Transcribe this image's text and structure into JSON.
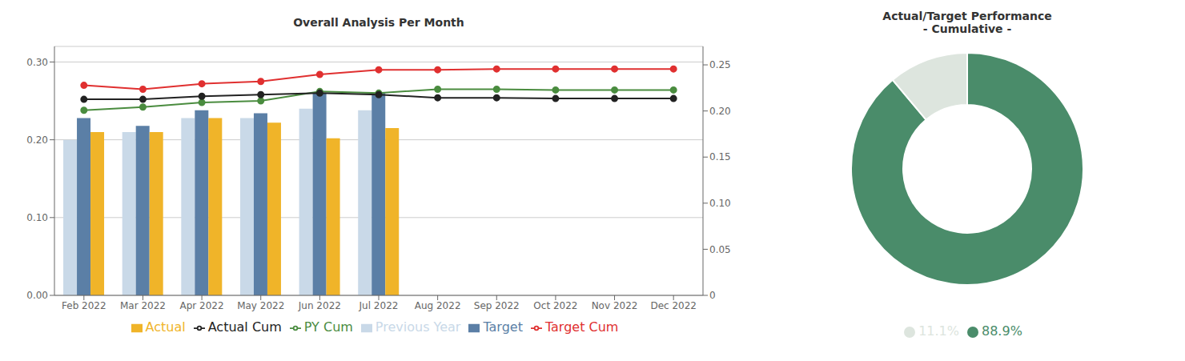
{
  "chart_data": [
    {
      "type": "bar",
      "title": "Overall Analysis Per Month",
      "categories": [
        "Feb 2022",
        "Mar 2022",
        "Apr 2022",
        "May 2022",
        "Jun 2022",
        "Jul 2022",
        "Aug 2022",
        "Sep 2022",
        "Oct 2022",
        "Nov 2022",
        "Dec 2022"
      ],
      "series": [
        {
          "name": "Previous Year",
          "type": "bar",
          "color": "#c9d9e8",
          "values": [
            0.2,
            0.21,
            0.228,
            0.228,
            0.24,
            0.238,
            null,
            null,
            null,
            null,
            null
          ]
        },
        {
          "name": "Target",
          "type": "bar",
          "color": "#5b7fa6",
          "values": [
            0.228,
            0.218,
            0.238,
            0.234,
            0.26,
            0.26,
            null,
            null,
            null,
            null,
            null
          ]
        },
        {
          "name": "Actual",
          "type": "bar",
          "color": "#f0b429",
          "values": [
            0.21,
            0.21,
            0.228,
            0.222,
            0.202,
            0.215,
            null,
            null,
            null,
            null,
            null
          ]
        },
        {
          "name": "PY Cum",
          "type": "line",
          "color": "#4a8c3f",
          "marker": "circle",
          "values": [
            0.238,
            0.242,
            0.248,
            0.25,
            0.262,
            0.26,
            0.265,
            0.265,
            0.264,
            0.264,
            0.264
          ]
        },
        {
          "name": "Target Cum",
          "type": "line",
          "color": "#e03030",
          "marker": "circle",
          "values": [
            0.27,
            0.265,
            0.272,
            0.275,
            0.284,
            0.29,
            0.29,
            0.291,
            0.291,
            0.291,
            0.291
          ]
        },
        {
          "name": "Actual Cum",
          "type": "line",
          "color": "#222222",
          "marker": "circle",
          "values": [
            0.252,
            0.252,
            0.256,
            0.258,
            0.26,
            0.258,
            0.254,
            0.254,
            0.253,
            0.253,
            0.253
          ]
        }
      ],
      "ylim": [
        0.0,
        0.32
      ],
      "yticks": [
        {
          "value": 0.0,
          "label": "0.00"
        },
        {
          "value": 0.1,
          "label": "0.10"
        },
        {
          "value": 0.2,
          "label": "0.20"
        },
        {
          "value": 0.3,
          "label": "0.30"
        }
      ],
      "y2lim": [
        0.0,
        0.27
      ],
      "y2ticks": [
        0,
        0.05,
        {
          "value": 0.1,
          "label": "0.10"
        },
        0.15,
        {
          "value": 0.2,
          "label": "0.20"
        },
        0.25
      ],
      "grid": true,
      "legend": "bottom"
    },
    {
      "type": "pie",
      "title": "Actual/Target Performance\n- Cumulative -",
      "categories": [
        "88.9%",
        "11.1%"
      ],
      "values": [
        88.9,
        11.1
      ],
      "colors": [
        "#4a8c6a",
        "#dde5de"
      ],
      "legend": "bottom"
    }
  ]
}
